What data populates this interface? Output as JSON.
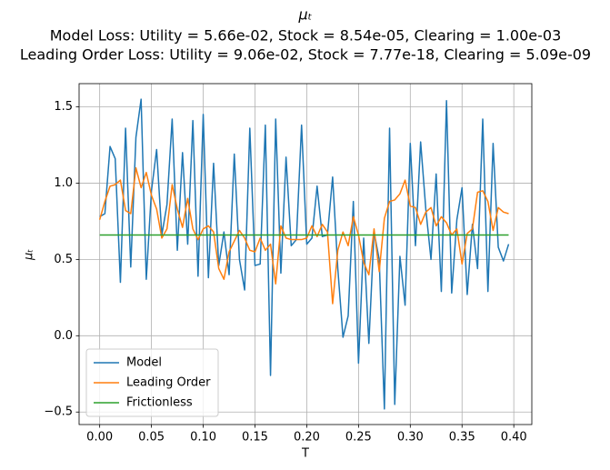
{
  "chart_data": {
    "type": "line",
    "title": "μₜ",
    "subtitle": [
      "Model Loss: Utility = 5.66e-02, Stock = 8.54e-05, Clearing = 1.00e-03",
      "Leading Order Loss: Utility = 9.06e-02, Stock = 7.77e-18, Clearing = 5.09e-09"
    ],
    "xlabel": "T",
    "ylabel": "μₜ",
    "x": [
      0,
      0.005,
      0.01,
      0.015,
      0.02,
      0.025,
      0.03,
      0.035,
      0.04,
      0.045,
      0.05,
      0.055,
      0.06,
      0.065,
      0.07,
      0.075,
      0.08,
      0.085,
      0.09,
      0.095,
      0.1,
      0.105,
      0.11,
      0.115,
      0.12,
      0.125,
      0.13,
      0.135,
      0.14,
      0.145,
      0.15,
      0.155,
      0.16,
      0.165,
      0.17,
      0.175,
      0.18,
      0.185,
      0.19,
      0.195,
      0.2,
      0.205,
      0.21,
      0.215,
      0.22,
      0.225,
      0.23,
      0.235,
      0.24,
      0.245,
      0.25,
      0.255,
      0.26,
      0.265,
      0.27,
      0.275,
      0.28,
      0.285,
      0.29,
      0.295,
      0.3,
      0.305,
      0.31,
      0.315,
      0.32,
      0.325,
      0.33,
      0.335,
      0.34,
      0.345,
      0.35,
      0.355,
      0.36,
      0.365,
      0.37,
      0.375,
      0.38,
      0.385,
      0.39,
      0.395
    ],
    "series": [
      {
        "name": "Model",
        "color": "#1f77b4",
        "values": [
          0.78,
          0.8,
          1.24,
          1.16,
          0.35,
          1.36,
          0.45,
          1.3,
          1.55,
          0.37,
          0.95,
          1.22,
          0.66,
          0.86,
          1.42,
          0.56,
          1.2,
          0.6,
          1.41,
          0.39,
          1.45,
          0.38,
          1.13,
          0.46,
          0.68,
          0.4,
          1.19,
          0.5,
          0.3,
          1.36,
          0.46,
          0.47,
          1.38,
          -0.26,
          1.42,
          0.41,
          1.17,
          0.59,
          0.63,
          1.38,
          0.6,
          0.64,
          0.98,
          0.65,
          0.66,
          1.04,
          0.44,
          -0.01,
          0.13,
          0.88,
          -0.18,
          0.64,
          -0.05,
          0.68,
          0.5,
          -0.48,
          1.36,
          -0.45,
          0.52,
          0.2,
          1.26,
          0.59,
          1.27,
          0.83,
          0.5,
          1.06,
          0.29,
          1.54,
          0.28,
          0.76,
          0.97,
          0.27,
          0.73,
          0.44,
          1.42,
          0.29,
          1.26,
          0.58,
          0.49,
          0.6
        ]
      },
      {
        "name": "Leading Order",
        "color": "#ff7f0e",
        "values": [
          0.76,
          0.88,
          0.98,
          0.99,
          1.02,
          0.82,
          0.8,
          1.1,
          0.97,
          1.07,
          0.92,
          0.83,
          0.64,
          0.7,
          0.99,
          0.83,
          0.71,
          0.9,
          0.7,
          0.63,
          0.7,
          0.72,
          0.68,
          0.44,
          0.37,
          0.55,
          0.62,
          0.69,
          0.64,
          0.56,
          0.55,
          0.64,
          0.56,
          0.6,
          0.34,
          0.72,
          0.64,
          0.63,
          0.63,
          0.63,
          0.64,
          0.72,
          0.65,
          0.73,
          0.68,
          0.21,
          0.56,
          0.68,
          0.59,
          0.78,
          0.66,
          0.48,
          0.4,
          0.7,
          0.42,
          0.77,
          0.88,
          0.89,
          0.93,
          1.02,
          0.85,
          0.84,
          0.73,
          0.81,
          0.84,
          0.72,
          0.78,
          0.74,
          0.66,
          0.7,
          0.47,
          0.67,
          0.7,
          0.94,
          0.95,
          0.88,
          0.69,
          0.84,
          0.81,
          0.8
        ]
      },
      {
        "name": "Frictionless",
        "color": "#2ca02c",
        "values": [
          0.66,
          0.66,
          0.66,
          0.66,
          0.66,
          0.66,
          0.66,
          0.66,
          0.66,
          0.66,
          0.66,
          0.66,
          0.66,
          0.66,
          0.66,
          0.66,
          0.66,
          0.66,
          0.66,
          0.66,
          0.66,
          0.66,
          0.66,
          0.66,
          0.66,
          0.66,
          0.66,
          0.66,
          0.66,
          0.66,
          0.66,
          0.66,
          0.66,
          0.66,
          0.66,
          0.66,
          0.66,
          0.66,
          0.66,
          0.66,
          0.66,
          0.66,
          0.66,
          0.66,
          0.66,
          0.66,
          0.66,
          0.66,
          0.66,
          0.66,
          0.66,
          0.66,
          0.66,
          0.66,
          0.66,
          0.66,
          0.66,
          0.66,
          0.66,
          0.66,
          0.66,
          0.66,
          0.66,
          0.66,
          0.66,
          0.66,
          0.66,
          0.66,
          0.66,
          0.66,
          0.66,
          0.66,
          0.66,
          0.66,
          0.66,
          0.66,
          0.66,
          0.66,
          0.66,
          0.66
        ]
      }
    ],
    "xlim": [
      -0.0199,
      0.4174
    ],
    "ylim": [
      -0.582,
      1.652
    ],
    "xticks": [
      {
        "value": 0,
        "label": "0.00"
      },
      0.05,
      {
        "value": 0.1,
        "label": "0.10"
      },
      0.15,
      {
        "value": 0.2,
        "label": "0.20"
      },
      0.25,
      {
        "value": 0.3,
        "label": "0.30"
      },
      0.35,
      {
        "value": 0.4,
        "label": "0.40"
      }
    ],
    "yticks": [
      {
        "value": -0.5,
        "label": "−0.5"
      },
      {
        "value": 0,
        "label": "0.0"
      },
      0.5,
      {
        "value": 1,
        "label": "1.0"
      },
      1.5
    ],
    "grid": true,
    "legend": "lower left"
  }
}
